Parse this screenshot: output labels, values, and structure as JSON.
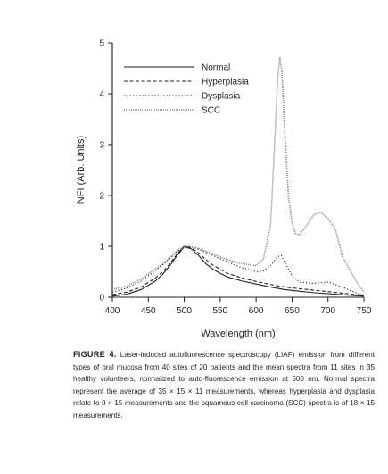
{
  "chart_data": {
    "type": "line",
    "xlabel": "Wavelength (nm)",
    "ylabel": "NFI (Arb. Units)",
    "xlim": [
      400,
      750
    ],
    "ylim": [
      0,
      5
    ],
    "xticks": [
      400,
      450,
      500,
      550,
      600,
      650,
      700,
      750
    ],
    "yticks": [
      0,
      1,
      2,
      3,
      4,
      5
    ],
    "legend_position": "top-left",
    "grid": false,
    "series": [
      {
        "name": "Normal",
        "style": "solid",
        "color": "#231f20",
        "x": [
          400,
          420,
          440,
          460,
          470,
          480,
          490,
          500,
          510,
          520,
          530,
          540,
          550,
          560,
          580,
          600,
          620,
          640,
          660,
          680,
          700,
          720,
          740,
          750
        ],
        "y": [
          0.02,
          0.06,
          0.15,
          0.32,
          0.45,
          0.62,
          0.82,
          0.99,
          0.95,
          0.82,
          0.66,
          0.55,
          0.47,
          0.4,
          0.32,
          0.26,
          0.2,
          0.15,
          0.12,
          0.09,
          0.07,
          0.05,
          0.03,
          0.02
        ]
      },
      {
        "name": "Hyperplasia",
        "style": "dashed",
        "color": "#231f20",
        "x": [
          400,
          420,
          440,
          460,
          470,
          480,
          490,
          500,
          510,
          520,
          530,
          540,
          550,
          560,
          580,
          600,
          620,
          640,
          660,
          680,
          700,
          720,
          740,
          750
        ],
        "y": [
          0.05,
          0.1,
          0.2,
          0.38,
          0.5,
          0.66,
          0.85,
          1.0,
          0.97,
          0.87,
          0.74,
          0.63,
          0.55,
          0.47,
          0.38,
          0.31,
          0.25,
          0.2,
          0.17,
          0.14,
          0.11,
          0.08,
          0.05,
          0.04
        ]
      },
      {
        "name": "Dysplasia",
        "style": "dotted",
        "color": "#231f20",
        "x": [
          400,
          420,
          440,
          460,
          480,
          490,
          500,
          510,
          520,
          540,
          560,
          580,
          600,
          610,
          620,
          630,
          635,
          640,
          650,
          660,
          680,
          700,
          720,
          740,
          750
        ],
        "y": [
          0.1,
          0.18,
          0.32,
          0.52,
          0.76,
          0.9,
          1.0,
          0.99,
          0.94,
          0.82,
          0.7,
          0.58,
          0.5,
          0.52,
          0.62,
          0.8,
          0.82,
          0.68,
          0.42,
          0.3,
          0.27,
          0.3,
          0.2,
          0.08,
          0.04
        ]
      },
      {
        "name": "SCC",
        "style": "dense-dotted",
        "color": "#8a8a8a",
        "x": [
          400,
          420,
          440,
          460,
          480,
          490,
          500,
          510,
          520,
          540,
          560,
          580,
          600,
          610,
          620,
          625,
          630,
          633,
          636,
          640,
          645,
          650,
          655,
          660,
          670,
          680,
          690,
          700,
          710,
          720,
          740,
          750
        ],
        "y": [
          0.15,
          0.22,
          0.36,
          0.56,
          0.78,
          0.92,
          1.0,
          0.99,
          0.96,
          0.85,
          0.74,
          0.66,
          0.62,
          0.75,
          1.4,
          2.8,
          4.3,
          4.72,
          4.4,
          3.2,
          2.0,
          1.45,
          1.25,
          1.22,
          1.4,
          1.62,
          1.67,
          1.55,
          1.35,
          0.8,
          0.3,
          0.1
        ]
      }
    ]
  },
  "caption": {
    "label": "FIGURE 4.",
    "text": "Laser-induced autofluorescence spectroscopy (LIAF) emission from different types of oral mucosa from 40 sites of 20 patients and the mean spectra from 11 sites in 35 healthy volunteers, normalized to auto-fluorescence emission at 500 nm. Normal spectra represent the average of 35 × 15 × 11 measurements, whereas hyperplasia and dysplasia relate to 9 × 15 measurements and the squamous cell carcinoma (SCC) spectra is of 18 × 15 measurements."
  }
}
